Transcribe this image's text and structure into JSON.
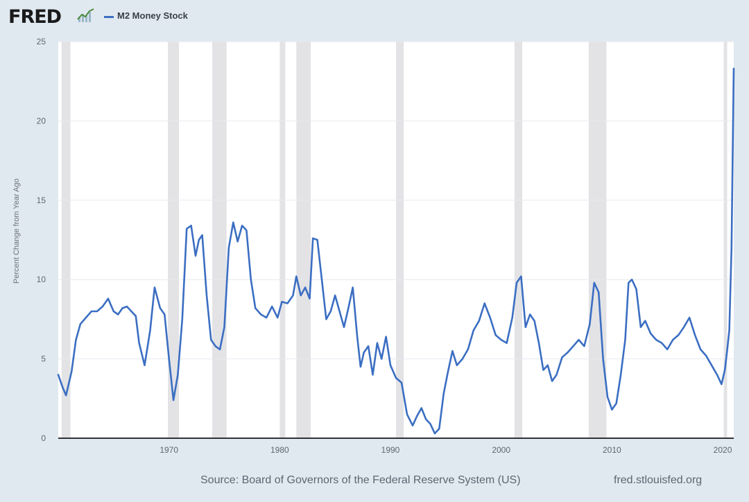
{
  "brand": {
    "logo_text": "FRED",
    "logo_icon": "chart-line-icon"
  },
  "legend": {
    "label": "M2 Money Stock",
    "color": "#3b6ec2"
  },
  "footer": {
    "source": "Source: Board of Governors of the Federal Reserve System (US)",
    "url": "fred.stlouisfed.org"
  },
  "chart_data": {
    "type": "line",
    "title": "M2 Money Stock",
    "xlabel": "",
    "ylabel": "Percent Change from Year Ago",
    "xlim": [
      1960.0,
      2021.0
    ],
    "ylim": [
      0,
      25
    ],
    "yticks": [
      0,
      5,
      10,
      15,
      20,
      25
    ],
    "xticks": [
      1970,
      1980,
      1990,
      2000,
      2010,
      2020
    ],
    "grid": true,
    "recessions": [
      [
        1960.3,
        1961.1
      ],
      [
        1969.9,
        1970.9
      ],
      [
        1973.9,
        1975.2
      ],
      [
        1980.0,
        1980.5
      ],
      [
        1981.5,
        1982.8
      ],
      [
        1990.5,
        1991.2
      ],
      [
        2001.2,
        2001.9
      ],
      [
        2007.9,
        2009.5
      ],
      [
        2020.1,
        2020.4
      ]
    ],
    "series": [
      {
        "name": "M2 Money Stock",
        "color": "#3b6ec2",
        "x": [
          1960.0,
          1960.4,
          1960.7,
          1961.2,
          1961.6,
          1962.0,
          1962.5,
          1963.0,
          1963.5,
          1964.0,
          1964.5,
          1965.0,
          1965.4,
          1965.8,
          1966.2,
          1966.6,
          1967.0,
          1967.3,
          1967.8,
          1968.3,
          1968.7,
          1969.2,
          1969.6,
          1970.0,
          1970.4,
          1970.8,
          1971.2,
          1971.6,
          1972.0,
          1972.4,
          1972.7,
          1973.0,
          1973.4,
          1973.8,
          1974.2,
          1974.6,
          1975.0,
          1975.4,
          1975.8,
          1976.2,
          1976.6,
          1977.0,
          1977.4,
          1977.8,
          1978.3,
          1978.8,
          1979.3,
          1979.8,
          1980.2,
          1980.7,
          1981.2,
          1981.5,
          1981.9,
          1982.3,
          1982.7,
          1983.0,
          1983.4,
          1983.8,
          1984.2,
          1984.6,
          1985.0,
          1985.4,
          1985.8,
          1986.2,
          1986.6,
          1987.0,
          1987.3,
          1987.6,
          1988.0,
          1988.4,
          1988.8,
          1989.2,
          1989.6,
          1990.0,
          1990.5,
          1991.0,
          1991.5,
          1992.0,
          1992.4,
          1992.8,
          1993.2,
          1993.6,
          1994.0,
          1994.4,
          1994.8,
          1995.2,
          1995.6,
          1996.0,
          1996.5,
          1997.0,
          1997.5,
          1998.0,
          1998.5,
          1999.0,
          1999.5,
          2000.0,
          2000.5,
          2001.0,
          2001.4,
          2001.8,
          2002.2,
          2002.6,
          2003.0,
          2003.4,
          2003.8,
          2004.2,
          2004.6,
          2005.0,
          2005.5,
          2006.0,
          2006.5,
          2007.0,
          2007.5,
          2008.0,
          2008.4,
          2008.8,
          2009.2,
          2009.6,
          2010.0,
          2010.4,
          2010.8,
          2011.2,
          2011.5,
          2011.8,
          2012.2,
          2012.6,
          2013.0,
          2013.5,
          2014.0,
          2014.5,
          2015.0,
          2015.5,
          2016.0,
          2016.5,
          2017.0,
          2017.5,
          2018.0,
          2018.5,
          2019.0,
          2019.5,
          2019.9,
          2020.2,
          2020.4,
          2020.6,
          2020.8,
          2021.0
        ],
        "values": [
          4.0,
          3.2,
          2.7,
          4.2,
          6.2,
          7.2,
          7.6,
          8.0,
          8.0,
          8.3,
          8.8,
          8.0,
          7.8,
          8.2,
          8.3,
          8.0,
          7.7,
          6.0,
          4.6,
          6.8,
          9.5,
          8.2,
          7.8,
          5.0,
          2.4,
          4.0,
          7.5,
          13.2,
          13.4,
          11.5,
          12.5,
          12.8,
          9.0,
          6.2,
          5.8,
          5.6,
          7.0,
          12.0,
          13.6,
          12.4,
          13.4,
          13.1,
          10.0,
          8.2,
          7.8,
          7.6,
          8.3,
          7.6,
          8.6,
          8.5,
          9.0,
          10.2,
          9.0,
          9.5,
          8.8,
          12.6,
          12.5,
          10.0,
          7.5,
          8.0,
          9.0,
          8.0,
          7.0,
          8.2,
          9.5,
          6.4,
          4.5,
          5.4,
          5.8,
          4.0,
          6.0,
          5.0,
          6.4,
          4.6,
          3.8,
          3.5,
          1.5,
          0.8,
          1.4,
          1.9,
          1.2,
          0.9,
          0.3,
          0.6,
          2.8,
          4.2,
          5.5,
          4.6,
          5.0,
          5.6,
          6.8,
          7.4,
          8.5,
          7.6,
          6.5,
          6.2,
          6.0,
          7.6,
          9.8,
          10.2,
          7.0,
          7.8,
          7.4,
          6.0,
          4.3,
          4.6,
          3.6,
          4.0,
          5.1,
          5.4,
          5.8,
          6.2,
          5.8,
          7.2,
          9.8,
          9.2,
          5.0,
          2.6,
          1.8,
          2.2,
          4.0,
          6.2,
          9.8,
          10.0,
          9.4,
          7.0,
          7.4,
          6.6,
          6.2,
          6.0,
          5.6,
          6.2,
          6.5,
          7.0,
          7.6,
          6.5,
          5.6,
          5.2,
          4.6,
          4.0,
          3.4,
          4.3,
          5.5,
          6.8,
          12.0,
          23.3
        ]
      }
    ]
  }
}
